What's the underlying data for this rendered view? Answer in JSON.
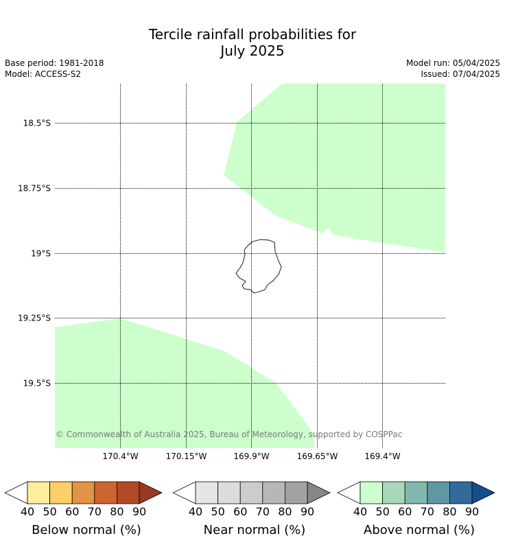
{
  "title_line1": "Tercile rainfall probabilities for",
  "title_line2": "July 2025",
  "meta": {
    "base_period": "Base period: 1981-2018",
    "model": "Model: ACCESS-S2",
    "model_run": "Model run: 05/04/2025",
    "issued": "Issued: 07/04/2025"
  },
  "map": {
    "lat_labels": [
      "18.5°S",
      "18.75°S",
      "19°S",
      "19.25°S",
      "19.5°S"
    ],
    "lon_labels": [
      "170.4°W",
      "170.15°W",
      "169.9°W",
      "169.65°W",
      "169.4°W"
    ],
    "lat_values": [
      -18.5,
      -18.75,
      -19.0,
      -19.25,
      -19.5
    ],
    "lon_values": [
      -170.4,
      -170.15,
      -169.9,
      -169.65,
      -169.4
    ],
    "extent": {
      "lon_min": -170.65,
      "lon_max": -169.16,
      "lat_max": -18.35,
      "lat_min": -19.75
    },
    "fill_color": "#ccffcc",
    "copyright": "© Commonwealth of Australia 2025, Bureau of Meteorology, supported by COSPPac"
  },
  "legends": [
    {
      "title": "Below normal (%)",
      "ticks": [
        "40",
        "50",
        "60",
        "70",
        "80",
        "90"
      ],
      "colors": [
        "#ffffff",
        "#ffeda0",
        "#fecf66",
        "#e09445",
        "#cd6532",
        "#b24a28",
        "#9a3a22"
      ]
    },
    {
      "title": "Near normal (%)",
      "ticks": [
        "40",
        "50",
        "60",
        "70",
        "80",
        "90"
      ],
      "colors": [
        "#ffffff",
        "#e6e6e6",
        "#dcdcdc",
        "#cccccc",
        "#b7b7b7",
        "#a2a2a2",
        "#868686"
      ]
    },
    {
      "title": "Above normal (%)",
      "ticks": [
        "40",
        "50",
        "60",
        "70",
        "80",
        "90"
      ],
      "colors": [
        "#ffffff",
        "#ccffcc",
        "#a8d8b9",
        "#83b8b0",
        "#5f97a2",
        "#336a9a",
        "#134d8e"
      ]
    }
  ]
}
